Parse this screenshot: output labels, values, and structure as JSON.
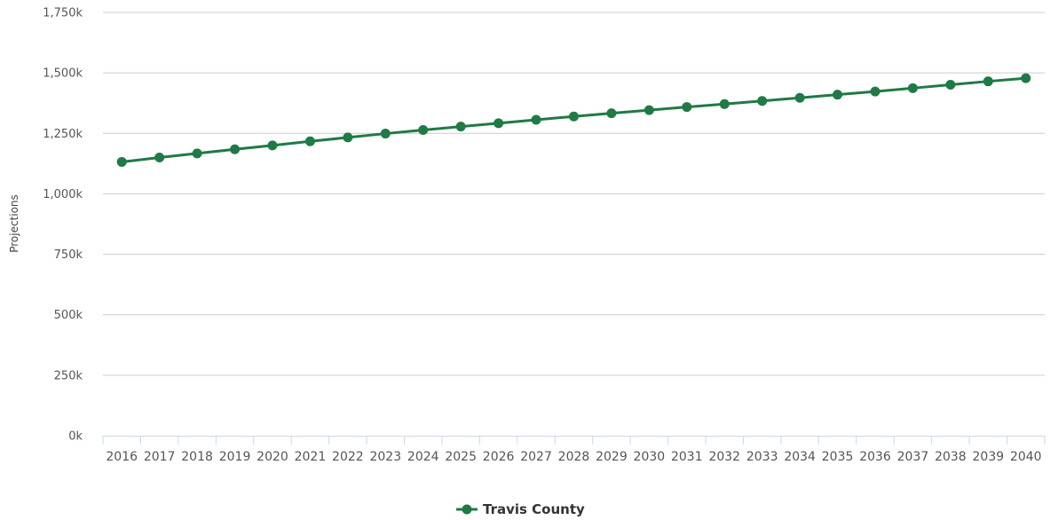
{
  "chart_data": {
    "type": "line",
    "title": "",
    "xlabel": "",
    "ylabel": "Projections",
    "x": [
      "2016",
      "2017",
      "2018",
      "2019",
      "2020",
      "2021",
      "2022",
      "2023",
      "2024",
      "2025",
      "2026",
      "2027",
      "2028",
      "2029",
      "2030",
      "2031",
      "2032",
      "2033",
      "2034",
      "2035",
      "2036",
      "2037",
      "2038",
      "2039",
      "2040"
    ],
    "ylim": [
      0,
      1750000
    ],
    "yticks": [
      0,
      250000,
      500000,
      750000,
      1000000,
      1250000,
      1500000,
      1750000
    ],
    "ytick_labels": [
      "0k",
      "250k",
      "500k",
      "750k",
      "1,000k",
      "1,250k",
      "1,500k",
      "1,750k"
    ],
    "grid": true,
    "legend_position": "bottom-center",
    "series": [
      {
        "name": "Travis County",
        "color": "#1f7a45",
        "marker": "circle",
        "values": [
          1132000,
          1150000,
          1167000,
          1184000,
          1200000,
          1217000,
          1233000,
          1249000,
          1264000,
          1278000,
          1292000,
          1306000,
          1320000,
          1333000,
          1346000,
          1359000,
          1371000,
          1384000,
          1397000,
          1410000,
          1423000,
          1437000,
          1451000,
          1465000,
          1478000
        ]
      }
    ]
  }
}
